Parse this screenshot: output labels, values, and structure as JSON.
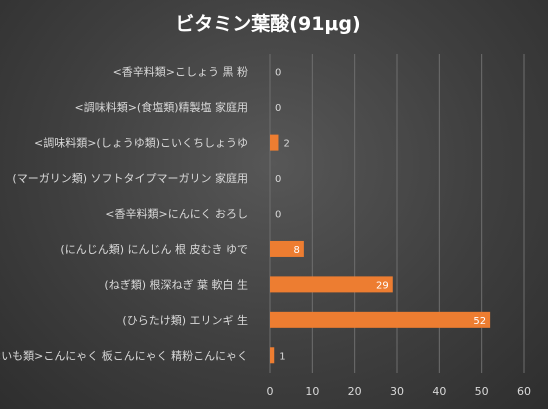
{
  "colors": {
    "bar": "#ed7d31",
    "text": "#d9d9d9",
    "title": "#ffffff",
    "grid": "#6e6e6e",
    "label_inside": "#ffffff",
    "label_outside": "#d9d9d9"
  },
  "chart_data": {
    "type": "bar",
    "orientation": "horizontal",
    "title": "ビタミン葉酸(91μg)",
    "xlabel": "",
    "ylabel": "",
    "xlim": [
      0,
      60
    ],
    "x_ticks": [
      0,
      10,
      20,
      30,
      40,
      50,
      60
    ],
    "grid": true,
    "legend": "none",
    "categories": [
      "<香辛料類>こしょう 黒 粉",
      "<調味料類>(食塩類)精製塩 家庭用",
      "<調味料類>(しょうゆ類)こいくちしょうゆ",
      "(マーガリン類) ソフトタイプマーガリン 家庭用",
      "<香辛料類>にんにく おろし",
      "(にんじん類) にんじん 根 皮むき ゆで",
      "(ねぎ類) 根深ねぎ 葉 軟白 生",
      "(ひらたけ類) エリンギ 生",
      "<いも類>こんにゃく 板こんにゃく 精粉こんにゃく"
    ],
    "values": [
      0,
      0,
      2,
      0,
      0,
      8,
      29,
      52,
      1
    ]
  }
}
